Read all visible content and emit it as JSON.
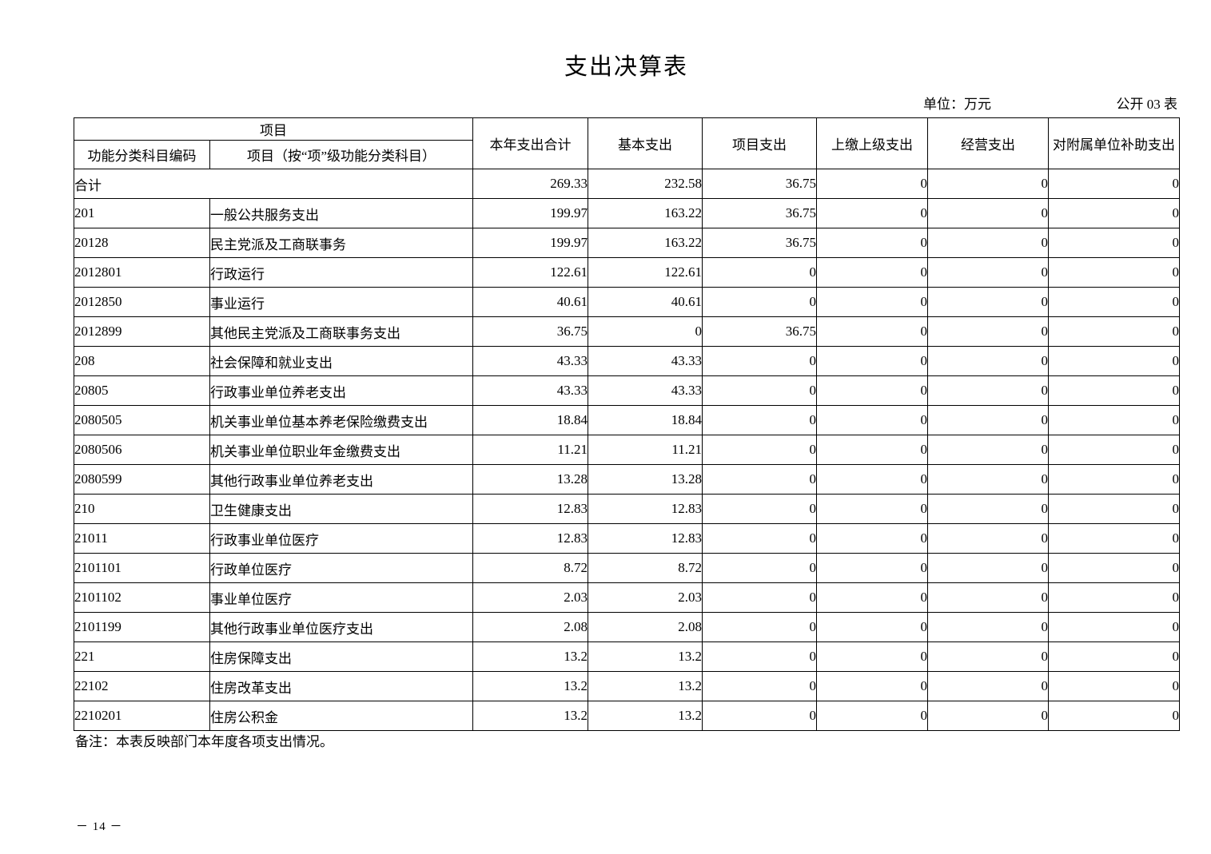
{
  "title": "支出决算表",
  "meta": {
    "unit": "单位：万元",
    "sheet": "公开 03 表"
  },
  "table": {
    "header": {
      "group": "项目",
      "sub_code": "功能分类科目编码",
      "sub_item": "项目（按“项”级功能分类科目）",
      "cols": [
        "本年支出合计",
        "基本支出",
        "项目支出",
        "上缴上级支出",
        "经营支出",
        "对附属单位补助支出"
      ]
    },
    "rows": [
      {
        "code": "",
        "name": "合计",
        "merged": true,
        "values": [
          "269.33",
          "232.58",
          "36.75",
          "0",
          "0",
          "0"
        ]
      },
      {
        "code": "201",
        "name": "一般公共服务支出",
        "merged": false,
        "values": [
          "199.97",
          "163.22",
          "36.75",
          "0",
          "0",
          "0"
        ]
      },
      {
        "code": "20128",
        "name": "民主党派及工商联事务",
        "merged": false,
        "values": [
          "199.97",
          "163.22",
          "36.75",
          "0",
          "0",
          "0"
        ]
      },
      {
        "code": "2012801",
        "name": "行政运行",
        "merged": false,
        "values": [
          "122.61",
          "122.61",
          "0",
          "0",
          "0",
          "0"
        ]
      },
      {
        "code": "2012850",
        "name": "事业运行",
        "merged": false,
        "values": [
          "40.61",
          "40.61",
          "0",
          "0",
          "0",
          "0"
        ]
      },
      {
        "code": "2012899",
        "name": "其他民主党派及工商联事务支出",
        "merged": false,
        "values": [
          "36.75",
          "0",
          "36.75",
          "0",
          "0",
          "0"
        ]
      },
      {
        "code": "208",
        "name": "社会保障和就业支出",
        "merged": false,
        "values": [
          "43.33",
          "43.33",
          "0",
          "0",
          "0",
          "0"
        ]
      },
      {
        "code": "20805",
        "name": "行政事业单位养老支出",
        "merged": false,
        "values": [
          "43.33",
          "43.33",
          "0",
          "0",
          "0",
          "0"
        ]
      },
      {
        "code": "2080505",
        "name": "机关事业单位基本养老保险缴费支出",
        "merged": false,
        "values": [
          "18.84",
          "18.84",
          "0",
          "0",
          "0",
          "0"
        ]
      },
      {
        "code": "2080506",
        "name": "机关事业单位职业年金缴费支出",
        "merged": false,
        "values": [
          "11.21",
          "11.21",
          "0",
          "0",
          "0",
          "0"
        ]
      },
      {
        "code": "2080599",
        "name": "其他行政事业单位养老支出",
        "merged": false,
        "values": [
          "13.28",
          "13.28",
          "0",
          "0",
          "0",
          "0"
        ]
      },
      {
        "code": "210",
        "name": "卫生健康支出",
        "merged": false,
        "values": [
          "12.83",
          "12.83",
          "0",
          "0",
          "0",
          "0"
        ]
      },
      {
        "code": "21011",
        "name": "行政事业单位医疗",
        "merged": false,
        "values": [
          "12.83",
          "12.83",
          "0",
          "0",
          "0",
          "0"
        ]
      },
      {
        "code": "2101101",
        "name": "行政单位医疗",
        "merged": false,
        "values": [
          "8.72",
          "8.72",
          "0",
          "0",
          "0",
          "0"
        ]
      },
      {
        "code": "2101102",
        "name": "事业单位医疗",
        "merged": false,
        "values": [
          "2.03",
          "2.03",
          "0",
          "0",
          "0",
          "0"
        ]
      },
      {
        "code": "2101199",
        "name": "其他行政事业单位医疗支出",
        "merged": false,
        "values": [
          "2.08",
          "2.08",
          "0",
          "0",
          "0",
          "0"
        ]
      },
      {
        "code": "221",
        "name": "住房保障支出",
        "merged": false,
        "values": [
          "13.2",
          "13.2",
          "0",
          "0",
          "0",
          "0"
        ]
      },
      {
        "code": "22102",
        "name": "住房改革支出",
        "merged": false,
        "values": [
          "13.2",
          "13.2",
          "0",
          "0",
          "0",
          "0"
        ]
      },
      {
        "code": "2210201",
        "name": "住房公积金",
        "merged": false,
        "values": [
          "13.2",
          "13.2",
          "0",
          "0",
          "0",
          "0"
        ]
      }
    ]
  },
  "footnote": "备注：本表反映部门本年度各项支出情况。",
  "page_number": "－ 14 －"
}
